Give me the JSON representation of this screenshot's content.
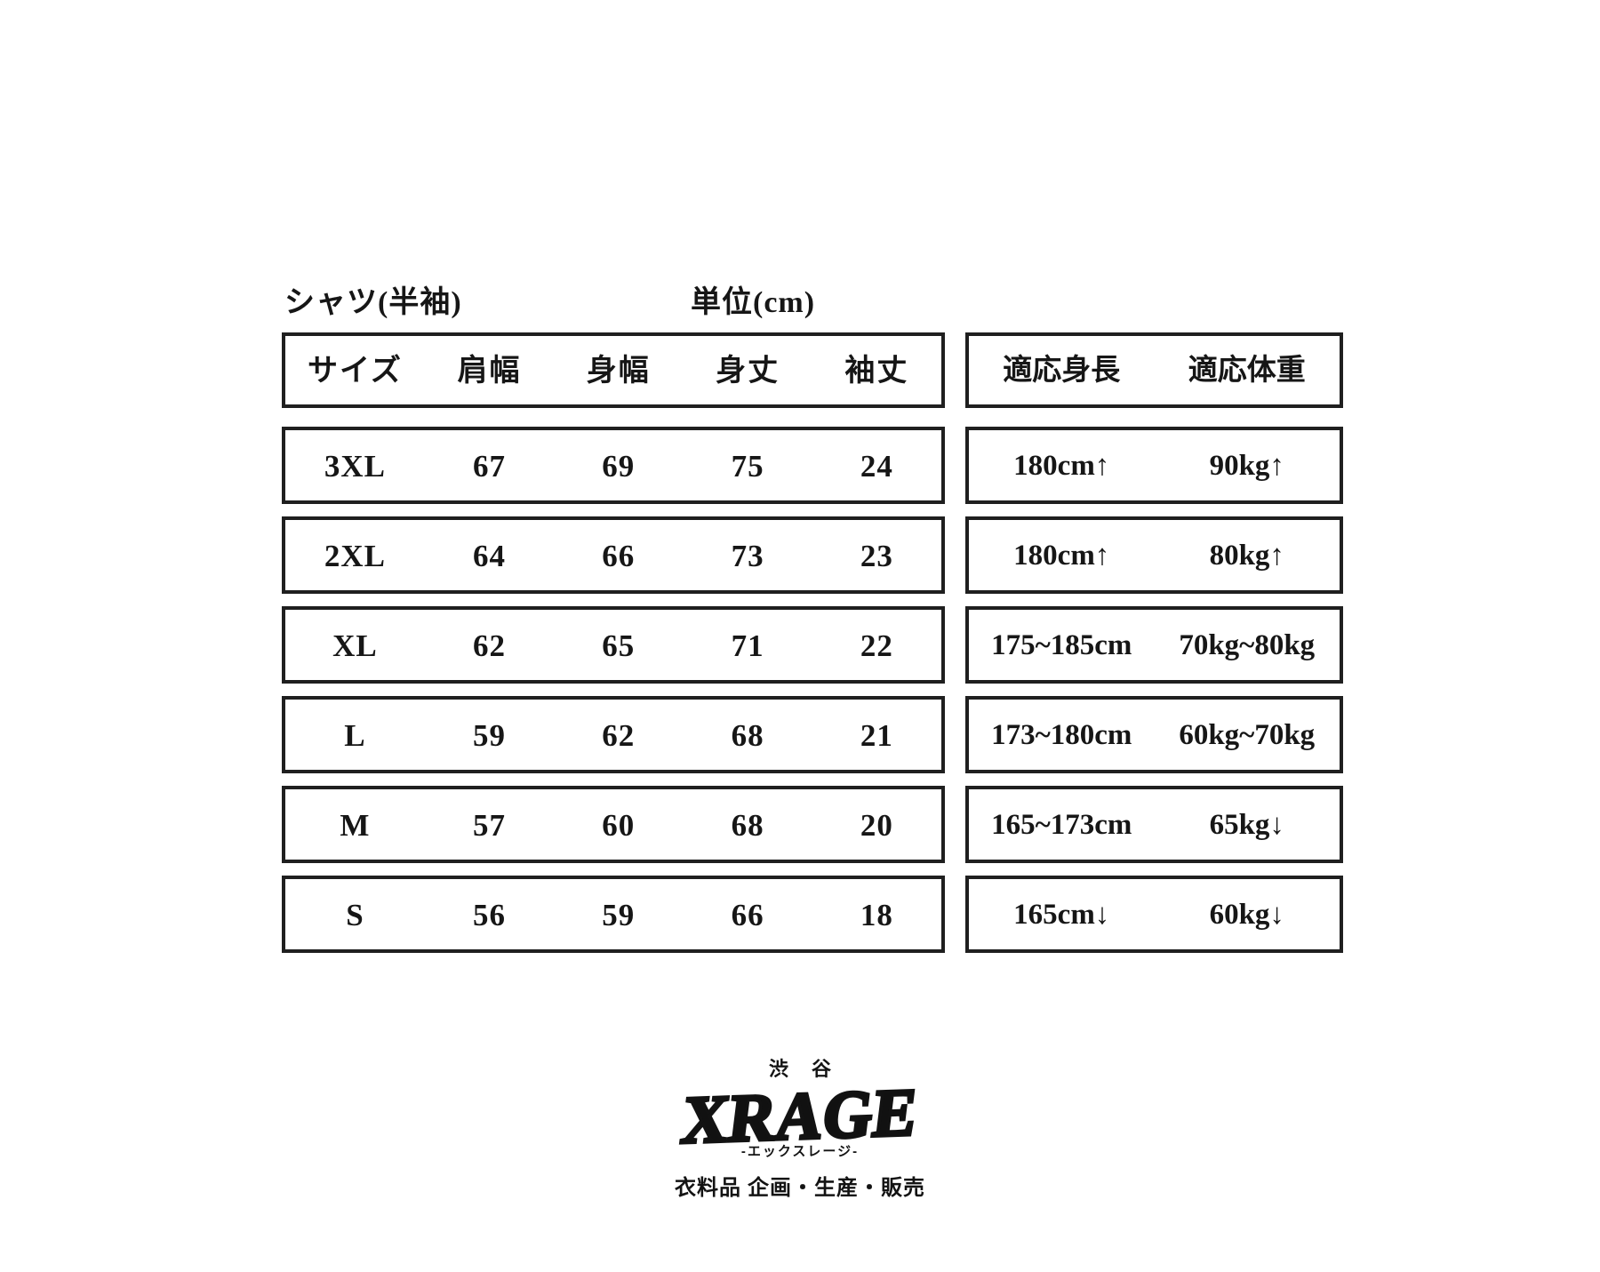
{
  "page": {
    "product_label": "シャツ(半袖)",
    "unit_label": "単位(cm)"
  },
  "size_table": {
    "headers": [
      "サイズ",
      "肩幅",
      "身幅",
      "身丈",
      "袖丈"
    ],
    "rows": [
      {
        "size": "3XL",
        "shoulder": "67",
        "body_width": "69",
        "body_length": "75",
        "sleeve": "24"
      },
      {
        "size": "2XL",
        "shoulder": "64",
        "body_width": "66",
        "body_length": "73",
        "sleeve": "23"
      },
      {
        "size": "XL",
        "shoulder": "62",
        "body_width": "65",
        "body_length": "71",
        "sleeve": "22"
      },
      {
        "size": "L",
        "shoulder": "59",
        "body_width": "62",
        "body_length": "68",
        "sleeve": "21"
      },
      {
        "size": "M",
        "shoulder": "57",
        "body_width": "60",
        "body_length": "68",
        "sleeve": "20"
      },
      {
        "size": "S",
        "shoulder": "56",
        "body_width": "59",
        "body_length": "66",
        "sleeve": "18"
      }
    ]
  },
  "fit_table": {
    "headers": [
      "適応身長",
      "適応体重"
    ],
    "rows": [
      {
        "height": "180cm↑",
        "weight": "90kg↑"
      },
      {
        "height": "180cm↑",
        "weight": "80kg↑"
      },
      {
        "height": "175~185cm",
        "weight": "70kg~80kg"
      },
      {
        "height": "173~180cm",
        "weight": "60kg~70kg"
      },
      {
        "height": "165~173cm",
        "weight": "65kg↓"
      },
      {
        "height": "165cm↓",
        "weight": "60kg↓"
      }
    ]
  },
  "logo": {
    "location": "渋谷",
    "brand": "XRAGE",
    "reading": "-エックスレージ-",
    "tagline": "衣料品 企画・生産・販売"
  },
  "colors": {
    "ink": "#1f1f1f",
    "background": "#ffffff"
  }
}
